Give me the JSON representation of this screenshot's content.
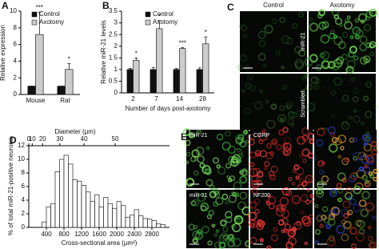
{
  "chart_data": [
    {
      "type": "bar",
      "label": "A",
      "ylabel": "Relative expression",
      "categories": [
        "Mouse",
        "Rat"
      ],
      "series": [
        {
          "name": "Control",
          "color": "#111111",
          "values": [
            1,
            1
          ],
          "errors": [
            0,
            0
          ]
        },
        {
          "name": "Axotomy",
          "color": "#cccccc",
          "values": [
            7.2,
            3.0
          ],
          "errors": [
            2.7,
            0.7
          ],
          "significance": [
            "***",
            "*"
          ]
        }
      ],
      "ylim": [
        0,
        10
      ],
      "yticks": [
        0,
        2,
        4,
        6,
        8,
        10
      ],
      "legend": "upper right"
    },
    {
      "type": "bar",
      "label": "B",
      "ylabel": "Relative miR-21 levels",
      "xlabel": "Number of days post-axotomy",
      "categories": [
        "2",
        "7",
        "14",
        "28"
      ],
      "series": [
        {
          "name": "Control",
          "color": "#111111",
          "values": [
            1,
            1,
            1,
            1
          ],
          "errors": [
            0.05,
            0.08,
            0.05,
            0.07
          ]
        },
        {
          "name": "Axotomy",
          "color": "#cccccc",
          "values": [
            1.4,
            2.75,
            1.9,
            2.1
          ],
          "errors": [
            0.1,
            0.35,
            0.05,
            0.3
          ],
          "significance": [
            "*",
            "*",
            "***",
            "*"
          ]
        }
      ],
      "ylim": [
        0,
        3.5
      ],
      "yticks": [
        0,
        0.5,
        1,
        1.5,
        2,
        2.5,
        3,
        3.5
      ],
      "legend": "upper left"
    },
    {
      "type": "histogram",
      "label": "D",
      "ylabel": "% of total miR-21-positive neurons",
      "xlabel": "Cross-sectional area (μm²)",
      "bins": [
        300,
        400,
        500,
        600,
        700,
        800,
        900,
        1000,
        1100,
        1200,
        1300,
        1400,
        1500,
        1600,
        1700,
        1800,
        1900,
        2000,
        2100,
        2200,
        2300,
        2400,
        2500,
        2600,
        2700,
        2800,
        2900,
        3000,
        3100
      ],
      "values": [
        0.8,
        3,
        3.5,
        8.2,
        10,
        10.6,
        9.3,
        7,
        6.8,
        6.2,
        5.2,
        3.8,
        4.8,
        3,
        4.4,
        3.5,
        2.8,
        3.8,
        3.2,
        1.5,
        1.8,
        2.6,
        1.7,
        1.3,
        1.2,
        1,
        0.5,
        0.4
      ],
      "color": "#ffffff",
      "xlim": [
        0,
        3200
      ],
      "xticks": [
        400,
        800,
        1200,
        1600,
        2000,
        2400,
        2800
      ],
      "ylim": [
        0,
        12
      ],
      "yticks": [
        0,
        2,
        4,
        6,
        8,
        10,
        12
      ],
      "x2label": "Diameter (μm)",
      "x2ticks": [
        0,
        10,
        20,
        30,
        40,
        50
      ],
      "x2scale": "circle-area"
    }
  ],
  "images": [
    {
      "label": "C",
      "columns": [
        "Control",
        "Axotomy"
      ],
      "rows": [
        "miR-21",
        "Scrambled"
      ]
    },
    {
      "label": "E",
      "cell_labels": [
        [
          "miR-21",
          "CGRP"
        ],
        [
          "miR-21",
          "NF200"
        ]
      ]
    }
  ]
}
